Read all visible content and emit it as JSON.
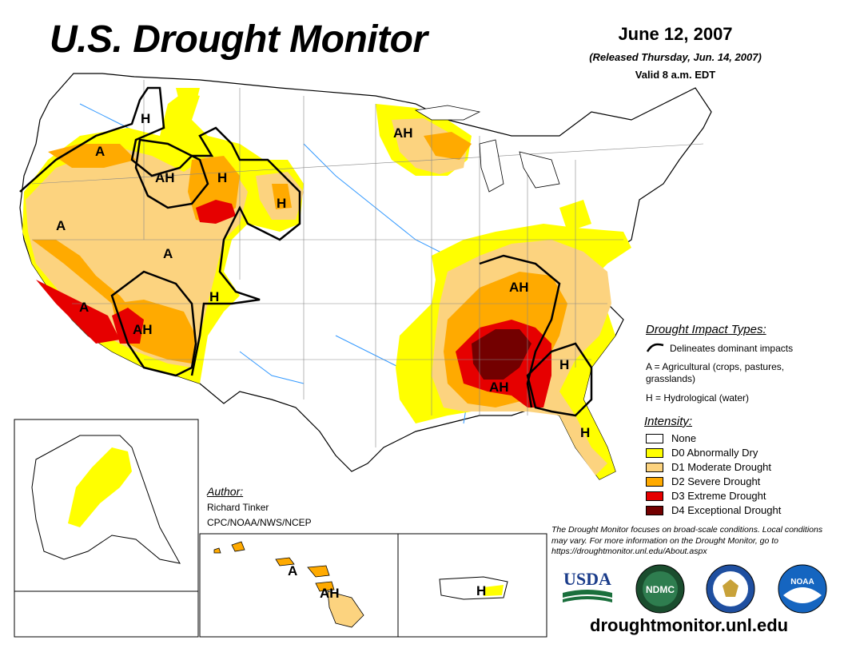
{
  "header": {
    "title": "U.S. Drought Monitor",
    "date": "June 12, 2007",
    "released": "(Released Thursday, Jun. 14, 2007)",
    "valid": "Valid 8 a.m. EDT"
  },
  "impact_types": {
    "title": "Drought Impact Types:",
    "delineates": "Delineates dominant impacts",
    "agricultural": "A = Agricultural (crops, pastures,",
    "agricultural_cont": "grasslands)",
    "hydrological": "H = Hydrological (water)"
  },
  "intensity": {
    "title": "Intensity:",
    "items": [
      {
        "label": "None",
        "color": "#ffffff"
      },
      {
        "label": "D0 Abnormally Dry",
        "color": "#ffff00"
      },
      {
        "label": "D1 Moderate Drought",
        "color": "#fcd37f"
      },
      {
        "label": "D2 Severe Drought",
        "color": "#ffaa00"
      },
      {
        "label": "D3 Extreme Drought",
        "color": "#e60000"
      },
      {
        "label": "D4 Exceptional Drought",
        "color": "#730000"
      }
    ]
  },
  "author": {
    "title": "Author:",
    "name": "Richard Tinker",
    "org": "CPC/NOAA/NWS/NCEP"
  },
  "note": "The Drought Monitor focuses on broad-scale conditions. Local conditions may vary. For more information on the Drought Monitor, go to https://droughtmonitor.unl.edu/About.aspx",
  "url": "droughtmonitor.unl.edu",
  "logos": {
    "usda": "USDA",
    "ndmc": "NDMC",
    "noaa": "NOAA"
  },
  "map_labels": {
    "nw_h": "H",
    "nw_a": "A",
    "mt_ah": "AH",
    "wy_h": "H",
    "sd_h": "H",
    "ca_a": "A",
    "ut_a": "A",
    "socal_a": "A",
    "az_ah": "AH",
    "nm_h": "H",
    "mn_ah": "AH",
    "se_ah_north": "AH",
    "se_ah_south": "AH",
    "ga_h": "H",
    "fl_h": "H",
    "hi_a": "A",
    "hi_ah": "AH",
    "pr_h": "H"
  }
}
